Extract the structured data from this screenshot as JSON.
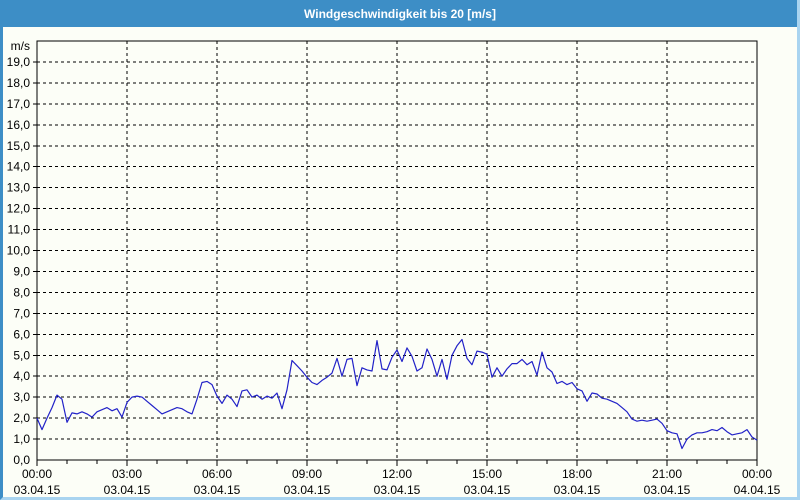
{
  "window": {
    "title": "Windgeschwindigkeit bis 20 [m/s]"
  },
  "colors": {
    "titlebar_bg": "#3d8ec6",
    "titlebar_text": "#ffffff",
    "window_background": "#fcfef7",
    "outer_border_left": "#3d8ec6",
    "outer_border_bottom_right": "#a9d4f0",
    "plot_border": "#000000",
    "grid": "#000000",
    "line": "#2222c8"
  },
  "chart_data": {
    "type": "line",
    "title": "Windgeschwindigkeit bis 20 [m/s]",
    "unit_label": "m/s",
    "ylim": [
      0,
      20
    ],
    "y_tick_step": 1,
    "y_tick_labels": [
      "0,0",
      "1,0",
      "2,0",
      "3,0",
      "4,0",
      "5,0",
      "6,0",
      "7,0",
      "8,0",
      "9,0",
      "10,0",
      "11,0",
      "12,0",
      "13,0",
      "14,0",
      "15,0",
      "16,0",
      "17,0",
      "18,0",
      "19,0"
    ],
    "xlim_hours": [
      0,
      24
    ],
    "x_major_tick_hours": 3,
    "x_minor_tick_hours": 1,
    "grid": "dashed",
    "legend": "none",
    "x_ticks": [
      {
        "time": "00:00",
        "date": "03.04.15"
      },
      {
        "time": "03:00",
        "date": "03.04.15"
      },
      {
        "time": "06:00",
        "date": "03.04.15"
      },
      {
        "time": "09:00",
        "date": "03.04.15"
      },
      {
        "time": "12:00",
        "date": "03.04.15"
      },
      {
        "time": "15:00",
        "date": "03.04.15"
      },
      {
        "time": "18:00",
        "date": "03.04.15"
      },
      {
        "time": "21:00",
        "date": "03.04.15"
      },
      {
        "time": "00:00",
        "date": "04.04.15"
      }
    ],
    "line_color": "#2222c8",
    "series": [
      {
        "name": "Windgeschwindigkeit",
        "interval_minutes": 10,
        "start_hour": 0,
        "values": [
          2.0,
          1.45,
          2.0,
          2.5,
          3.1,
          2.9,
          1.8,
          2.25,
          2.2,
          2.3,
          2.2,
          2.05,
          2.3,
          2.4,
          2.5,
          2.35,
          2.45,
          2.05,
          2.75,
          3.0,
          3.05,
          3.0,
          2.8,
          2.6,
          2.4,
          2.2,
          2.3,
          2.4,
          2.5,
          2.45,
          2.3,
          2.2,
          2.9,
          3.7,
          3.75,
          3.6,
          3.05,
          2.7,
          3.1,
          2.9,
          2.55,
          3.3,
          3.35,
          3.0,
          3.1,
          2.9,
          3.05,
          2.95,
          3.2,
          2.45,
          3.35,
          4.75,
          4.5,
          4.25,
          3.95,
          3.7,
          3.6,
          3.8,
          3.95,
          4.15,
          4.85,
          4.0,
          4.8,
          4.85,
          3.55,
          4.4,
          4.3,
          4.25,
          5.7,
          4.35,
          4.3,
          4.9,
          5.25,
          4.7,
          5.35,
          4.95,
          4.25,
          4.4,
          5.3,
          4.8,
          4.0,
          4.8,
          3.85,
          5.0,
          5.45,
          5.75,
          4.85,
          4.55,
          5.2,
          5.15,
          5.05,
          3.95,
          4.4,
          4.0,
          4.35,
          4.6,
          4.6,
          4.8,
          4.55,
          4.7,
          4.05,
          5.15,
          4.4,
          4.2,
          3.65,
          3.75,
          3.6,
          3.7,
          3.4,
          3.3,
          2.8,
          3.2,
          3.15,
          2.95,
          2.9,
          2.8,
          2.7,
          2.5,
          2.3,
          1.95,
          1.85,
          1.9,
          1.85,
          1.9,
          1.95,
          1.75,
          1.4,
          1.3,
          1.25,
          0.55,
          1.0,
          1.2,
          1.3,
          1.3,
          1.35,
          1.45,
          1.4,
          1.55,
          1.35,
          1.2,
          1.25,
          1.3,
          1.45,
          1.1,
          0.95
        ]
      }
    ]
  }
}
